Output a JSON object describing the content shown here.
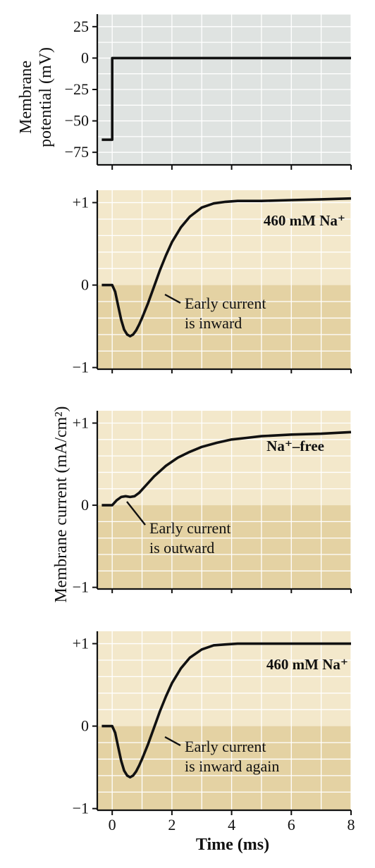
{
  "colors": {
    "voltage_panel_bg": "#dfe3e1",
    "current_panel_upper_bg": "#f3e8cb",
    "current_panel_lower_bg": "#e4d2a3",
    "grid": "#ffffff",
    "trace": "#111111"
  },
  "y_label_voltage": [
    "Membrane",
    "potential (mV)"
  ],
  "y_label_current": "Membrane current (mA/cm²)",
  "x_label": "Time (ms)",
  "chart_data": [
    {
      "type": "line",
      "panel": "voltage",
      "ylabel": "Membrane potential (mV)",
      "xlim": [
        -0.5,
        8
      ],
      "ylim": [
        -85,
        35
      ],
      "yticks": [
        25,
        0,
        -25,
        -50,
        -75
      ],
      "ytick_labels": [
        "25",
        "0",
        "−25",
        "−50",
        "−75"
      ],
      "grid": true,
      "series": [
        {
          "x": [
            -0.35,
            0,
            0,
            8
          ],
          "y": [
            -65,
            -65,
            0,
            0
          ]
        }
      ]
    },
    {
      "type": "line",
      "panel": "current",
      "label": "460 mM Na⁺",
      "annotation": [
        "Early current",
        "is inward"
      ],
      "xlim": [
        -0.5,
        8
      ],
      "ylim": [
        -1,
        1.15
      ],
      "yticks": [
        1,
        0,
        -1
      ],
      "ytick_labels": [
        "+1",
        "0",
        "−1"
      ],
      "grid": true,
      "series": [
        {
          "x": [
            -0.35,
            0,
            0.1,
            0.2,
            0.3,
            0.4,
            0.5,
            0.6,
            0.7,
            0.8,
            0.9,
            1.0,
            1.2,
            1.4,
            1.6,
            1.8,
            2.0,
            2.3,
            2.6,
            3.0,
            3.4,
            3.8,
            4.2,
            4.6,
            5.0,
            6.0,
            7.0,
            8.0
          ],
          "y": [
            0,
            0,
            -0.08,
            -0.25,
            -0.42,
            -0.54,
            -0.6,
            -0.62,
            -0.6,
            -0.55,
            -0.48,
            -0.4,
            -0.22,
            -0.02,
            0.18,
            0.36,
            0.52,
            0.7,
            0.83,
            0.94,
            0.99,
            1.01,
            1.02,
            1.02,
            1.02,
            1.03,
            1.04,
            1.05
          ]
        }
      ]
    },
    {
      "type": "line",
      "panel": "current",
      "label": "Na⁺–free",
      "annotation": [
        "Early current",
        "is outward"
      ],
      "xlim": [
        -0.5,
        8
      ],
      "ylim": [
        -1,
        1.15
      ],
      "yticks": [
        1,
        0,
        -1
      ],
      "ytick_labels": [
        "+1",
        "0",
        "−1"
      ],
      "grid": true,
      "series": [
        {
          "x": [
            -0.35,
            0,
            0.15,
            0.3,
            0.45,
            0.6,
            0.75,
            0.9,
            1.1,
            1.4,
            1.8,
            2.2,
            2.6,
            3.0,
            3.5,
            4.0,
            4.5,
            5.0,
            6.0,
            7.0,
            8.0
          ],
          "y": [
            0,
            0,
            0.06,
            0.1,
            0.11,
            0.1,
            0.11,
            0.15,
            0.23,
            0.35,
            0.48,
            0.58,
            0.65,
            0.71,
            0.76,
            0.8,
            0.82,
            0.84,
            0.86,
            0.87,
            0.89
          ]
        }
      ]
    },
    {
      "type": "line",
      "panel": "current",
      "label": "460 mM Na⁺",
      "annotation": [
        "Early current",
        "is inward again"
      ],
      "xlim": [
        -0.5,
        8
      ],
      "ylim": [
        -1,
        1.15
      ],
      "yticks": [
        1,
        0,
        -1
      ],
      "ytick_labels": [
        "+1",
        "0",
        "−1"
      ],
      "xticks": [
        0,
        2,
        4,
        6,
        8
      ],
      "xlabel": "Time (ms)",
      "grid": true,
      "series": [
        {
          "x": [
            -0.35,
            0,
            0.1,
            0.2,
            0.3,
            0.4,
            0.5,
            0.6,
            0.7,
            0.8,
            0.9,
            1.0,
            1.2,
            1.4,
            1.6,
            1.8,
            2.0,
            2.3,
            2.6,
            3.0,
            3.4,
            3.8,
            4.2,
            4.6,
            5.0,
            6.0,
            7.0,
            8.0
          ],
          "y": [
            0,
            0,
            -0.08,
            -0.25,
            -0.42,
            -0.54,
            -0.6,
            -0.62,
            -0.6,
            -0.55,
            -0.48,
            -0.4,
            -0.22,
            -0.02,
            0.18,
            0.36,
            0.52,
            0.7,
            0.83,
            0.93,
            0.98,
            0.99,
            1.0,
            1.0,
            1.0,
            1.0,
            1.0,
            1.0
          ]
        }
      ]
    }
  ]
}
